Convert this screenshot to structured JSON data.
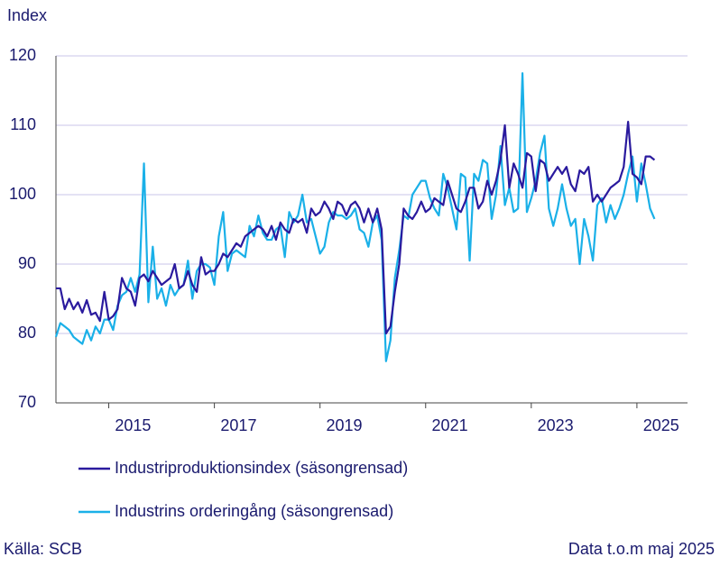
{
  "chart_data": {
    "type": "line",
    "ylabel": "Index",
    "source": "Källa: SCB",
    "note": "Data t.o.m maj 2025",
    "ylim": [
      70,
      120
    ],
    "yticks": [
      70,
      80,
      90,
      100,
      110,
      120
    ],
    "grid": true,
    "xticks": [
      "2015",
      "2017",
      "2019",
      "2021",
      "2023",
      "2025"
    ],
    "x": [
      "2014-01",
      "2014-02",
      "2014-03",
      "2014-04",
      "2014-05",
      "2014-06",
      "2014-07",
      "2014-08",
      "2014-09",
      "2014-10",
      "2014-11",
      "2014-12",
      "2015-01",
      "2015-02",
      "2015-03",
      "2015-04",
      "2015-05",
      "2015-06",
      "2015-07",
      "2015-08",
      "2015-09",
      "2015-10",
      "2015-11",
      "2015-12",
      "2016-01",
      "2016-02",
      "2016-03",
      "2016-04",
      "2016-05",
      "2016-06",
      "2016-07",
      "2016-08",
      "2016-09",
      "2016-10",
      "2016-11",
      "2016-12",
      "2017-01",
      "2017-02",
      "2017-03",
      "2017-04",
      "2017-05",
      "2017-06",
      "2017-07",
      "2017-08",
      "2017-09",
      "2017-10",
      "2017-11",
      "2017-12",
      "2018-01",
      "2018-02",
      "2018-03",
      "2018-04",
      "2018-05",
      "2018-06",
      "2018-07",
      "2018-08",
      "2018-09",
      "2018-10",
      "2018-11",
      "2018-12",
      "2019-01",
      "2019-02",
      "2019-03",
      "2019-04",
      "2019-05",
      "2019-06",
      "2019-07",
      "2019-08",
      "2019-09",
      "2019-10",
      "2019-11",
      "2019-12",
      "2020-01",
      "2020-02",
      "2020-03",
      "2020-04",
      "2020-05",
      "2020-06",
      "2020-07",
      "2020-08",
      "2020-09",
      "2020-10",
      "2020-11",
      "2020-12",
      "2021-01",
      "2021-02",
      "2021-03",
      "2021-04",
      "2021-05",
      "2021-06",
      "2021-07",
      "2021-08",
      "2021-09",
      "2021-10",
      "2021-11",
      "2021-12",
      "2022-01",
      "2022-02",
      "2022-03",
      "2022-04",
      "2022-05",
      "2022-06",
      "2022-07",
      "2022-08",
      "2022-09",
      "2022-10",
      "2022-11",
      "2022-12",
      "2023-01",
      "2023-02",
      "2023-03",
      "2023-04",
      "2023-05",
      "2023-06",
      "2023-07",
      "2023-08",
      "2023-09",
      "2023-10",
      "2023-11",
      "2023-12",
      "2024-01",
      "2024-02",
      "2024-03",
      "2024-04",
      "2024-05",
      "2024-06",
      "2024-07",
      "2024-08",
      "2024-09",
      "2024-10",
      "2024-11",
      "2024-12",
      "2025-01",
      "2025-02",
      "2025-03",
      "2025-04",
      "2025-05"
    ],
    "series": [
      {
        "name": "Industriproduktionsindex (säsongrensad)",
        "color": "#2a1a9e",
        "values": [
          86.5,
          86.5,
          83.5,
          85,
          83.5,
          84.5,
          83,
          84.8,
          82.7,
          83,
          81.8,
          86,
          82,
          82.5,
          83.5,
          88,
          86.5,
          86,
          84,
          88,
          88.5,
          87.5,
          89,
          88,
          87,
          87.5,
          88,
          90,
          86.5,
          87,
          89,
          87,
          86,
          91,
          88.5,
          89,
          89,
          90,
          91.5,
          91,
          92,
          93,
          92.5,
          94,
          94.5,
          95,
          95.5,
          95,
          94,
          95.5,
          93.5,
          96,
          95,
          94.5,
          96.5,
          96,
          96.5,
          94.5,
          98,
          97,
          97.5,
          99,
          98,
          96.5,
          99,
          98.5,
          97,
          98.5,
          99,
          98,
          96,
          98,
          96,
          98,
          95,
          80,
          81,
          86,
          90,
          98,
          97,
          96.5,
          97.5,
          99,
          97.5,
          98,
          99.5,
          99,
          98.5,
          102,
          100,
          98,
          97.5,
          99,
          101,
          101,
          98,
          99,
          102,
          100,
          102,
          105,
          110,
          101,
          104.5,
          103,
          101,
          106,
          105.5,
          100.5,
          105,
          104.5,
          102,
          103,
          104,
          103,
          104,
          101.5,
          100.5,
          103.5,
          103,
          104,
          99,
          100,
          99,
          100,
          101,
          101.5,
          102,
          104,
          110.5,
          103,
          102.5,
          101.5,
          105.5,
          105.5,
          105
        ]
      },
      {
        "name": "Industrins orderingång (säsongrensad)",
        "color": "#1ab0e8",
        "values": [
          79.5,
          81.5,
          81,
          80.5,
          79.5,
          79,
          78.5,
          80.5,
          79,
          81,
          80,
          82,
          82,
          80.5,
          84,
          85.5,
          86,
          88,
          86,
          88.5,
          104.5,
          84.5,
          92.5,
          85,
          86.5,
          84,
          87,
          85.5,
          86.5,
          87,
          90.5,
          85,
          89,
          90,
          90,
          89.5,
          87,
          94,
          97.5,
          89,
          91.5,
          92,
          91.5,
          91,
          95.5,
          94,
          97,
          94.5,
          93.5,
          93.5,
          95,
          95.5,
          91,
          97.5,
          96,
          97,
          100,
          96,
          96.5,
          94,
          91.5,
          92.5,
          96,
          97.5,
          97,
          97,
          96.5,
          97,
          98,
          95,
          94.5,
          92.5,
          96,
          97,
          93.5,
          76,
          79,
          88,
          92,
          97,
          96.5,
          100,
          101,
          102,
          102,
          99.5,
          98,
          97,
          103,
          101,
          98,
          95,
          103,
          102.5,
          90.5,
          103,
          102,
          105,
          104.5,
          96.5,
          100,
          107,
          98.5,
          101,
          97.5,
          98,
          117.5,
          97.5,
          99.5,
          102,
          106,
          108.5,
          98,
          95.5,
          98,
          101.5,
          98,
          95.5,
          96.5,
          90,
          96.5,
          94,
          90.5,
          98.5,
          99.5,
          96,
          98.5,
          96.5,
          98,
          100,
          103,
          105.5,
          99,
          104.5,
          101.5,
          98,
          96.5
        ]
      }
    ]
  }
}
